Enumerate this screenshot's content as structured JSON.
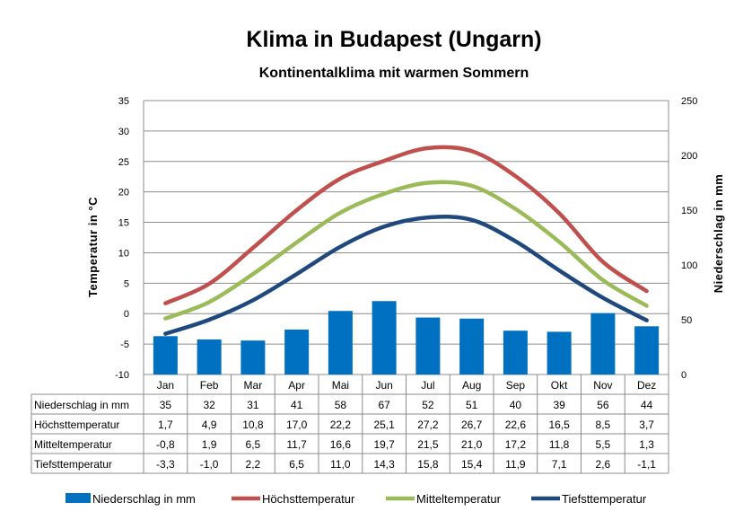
{
  "chart_data": {
    "type": "bar+line",
    "title": "Klima in Budapest (Ungarn)",
    "subtitle": "Kontinentalklima mit warmen Sommern",
    "ylabel_left": "Temperatur in °C",
    "ylabel_right": "Niederschlag in mm",
    "ylim_left": [
      -10,
      35
    ],
    "yticks_left": [
      35,
      30,
      25,
      20,
      15,
      10,
      5,
      0,
      -5,
      -10
    ],
    "ylim_right": [
      0,
      250
    ],
    "yticks_right": [
      250,
      200,
      150,
      100,
      50,
      0
    ],
    "grid": true,
    "legend": "bottom",
    "categories": [
      "Jan",
      "Feb",
      "Mar",
      "Apr",
      "Mai",
      "Jun",
      "Jul",
      "Aug",
      "Sep",
      "Okt",
      "Nov",
      "Dez"
    ],
    "series": [
      {
        "name": "Niederschlag in mm",
        "type": "bar",
        "axis": "right",
        "color": "#0070C0",
        "values": [
          35,
          32,
          31,
          41,
          58,
          67,
          52,
          51,
          40,
          39,
          56,
          44
        ],
        "labels": [
          "35",
          "32",
          "31",
          "41",
          "58",
          "67",
          "52",
          "51",
          "40",
          "39",
          "56",
          "44"
        ]
      },
      {
        "name": "Höchsttemperatur",
        "type": "line",
        "axis": "left",
        "color": "#C0504D",
        "values": [
          1.7,
          4.9,
          10.8,
          17.0,
          22.2,
          25.1,
          27.2,
          26.7,
          22.6,
          16.5,
          8.5,
          3.7
        ],
        "labels": [
          "1,7",
          "4,9",
          "10,8",
          "17,0",
          "22,2",
          "25,1",
          "27,2",
          "26,7",
          "22,6",
          "16,5",
          "8,5",
          "3,7"
        ]
      },
      {
        "name": "Mitteltemperatur",
        "type": "line",
        "axis": "left",
        "color": "#9BBB59",
        "values": [
          -0.8,
          1.9,
          6.5,
          11.7,
          16.6,
          19.7,
          21.5,
          21.0,
          17.2,
          11.8,
          5.5,
          1.3
        ],
        "labels": [
          "-0,8",
          "1,9",
          "6,5",
          "11,7",
          "16,6",
          "19,7",
          "21,5",
          "21,0",
          "17,2",
          "11,8",
          "5,5",
          "1,3"
        ]
      },
      {
        "name": "Tiefsttemperatur",
        "type": "line",
        "axis": "left",
        "color": "#1F497D",
        "values": [
          -3.3,
          -1.0,
          2.2,
          6.5,
          11.0,
          14.3,
          15.8,
          15.4,
          11.9,
          7.1,
          2.6,
          -1.1
        ],
        "labels": [
          "-3,3",
          "-1,0",
          "2,2",
          "6,5",
          "11,0",
          "14,3",
          "15,8",
          "15,4",
          "11,9",
          "7,1",
          "2,6",
          "-1,1"
        ]
      }
    ]
  }
}
